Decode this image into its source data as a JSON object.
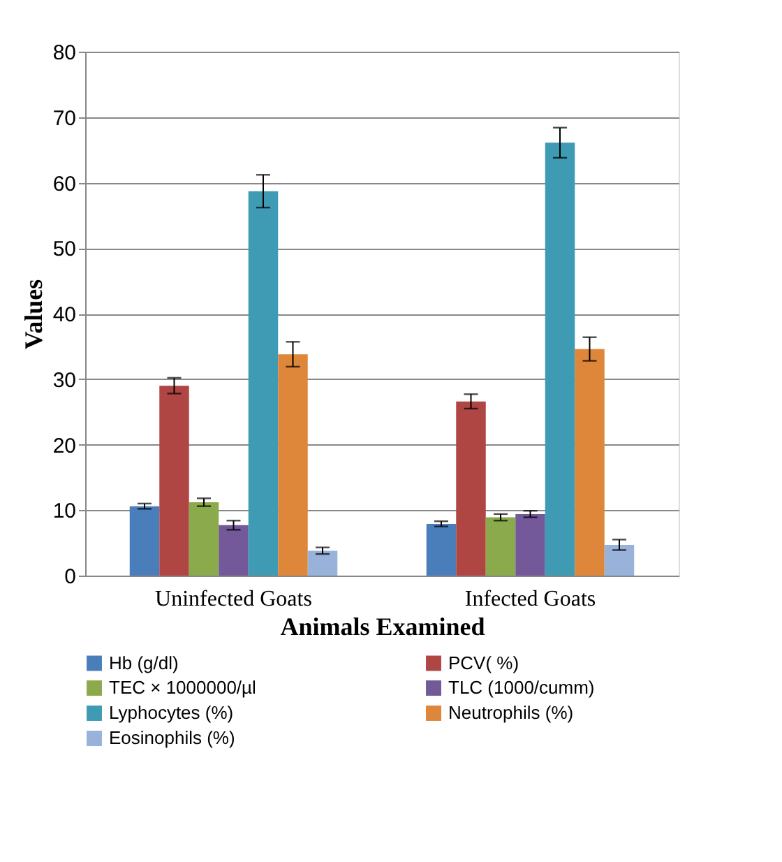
{
  "chart_data": {
    "type": "bar",
    "xlabel": "Animals Examined",
    "ylabel": "Values",
    "categories": [
      "Uninfected Goats",
      "Infected Goats"
    ],
    "series": [
      {
        "name": "Hb (g/dl)",
        "color": "#4a7ebb",
        "values": [
          10.6,
          7.9
        ],
        "errors": [
          0.4,
          0.4
        ]
      },
      {
        "name": "PCV( %)",
        "color": "#b04644",
        "values": [
          29.0,
          26.6
        ],
        "errors": [
          1.2,
          1.1
        ]
      },
      {
        "name": "TEC × 1000000/µl",
        "color": "#8aaa4c",
        "values": [
          11.2,
          8.9
        ],
        "errors": [
          0.6,
          0.5
        ]
      },
      {
        "name": "TLC (1000/cumm)",
        "color": "#73589a",
        "values": [
          7.7,
          9.4
        ],
        "errors": [
          0.7,
          0.5
        ]
      },
      {
        "name": "Lyphocytes (%)",
        "color": "#3f9ab3",
        "values": [
          58.7,
          66.1
        ],
        "errors": [
          2.5,
          2.3
        ]
      },
      {
        "name": "Neutrophils (%)",
        "color": "#de8639",
        "values": [
          33.8,
          34.6
        ],
        "errors": [
          1.9,
          1.8
        ]
      },
      {
        "name": "Eosinophils (%)",
        "color": "#98b2da",
        "values": [
          3.8,
          4.7
        ],
        "errors": [
          0.5,
          0.8
        ]
      }
    ],
    "ylim": [
      0,
      80
    ],
    "yticks": [
      0,
      10,
      20,
      30,
      40,
      50,
      60,
      70,
      80
    ],
    "grid": "y",
    "legend": "bottom"
  }
}
